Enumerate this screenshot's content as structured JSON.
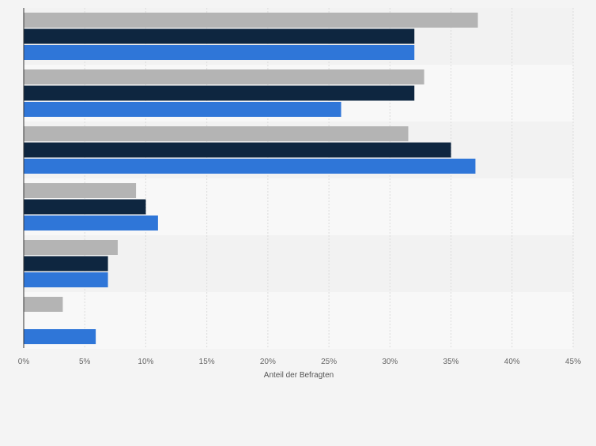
{
  "chart_data": {
    "type": "bar",
    "orientation": "horizontal",
    "categories": [
      "",
      "",
      "",
      "",
      "",
      ""
    ],
    "series": [
      {
        "values": [
          37.2,
          32.8,
          31.5,
          9.2,
          7.7,
          3.2
        ],
        "color": "#b4b4b4"
      },
      {
        "values": [
          32.0,
          32.0,
          35.0,
          10.0,
          6.9,
          null
        ],
        "color": "#0e2640"
      },
      {
        "values": [
          32.0,
          26.0,
          37.0,
          11.0,
          6.9,
          5.9
        ],
        "color": "#2f76d8"
      }
    ],
    "xlim": [
      0,
      45
    ],
    "xticks": [
      0,
      5,
      10,
      15,
      20,
      25,
      30,
      35,
      40,
      45
    ],
    "xtick_labels": [
      "0%",
      "5%",
      "10%",
      "15%",
      "20%",
      "25%",
      "30%",
      "35%",
      "40%",
      "45%"
    ],
    "xlabel": "Anteil der Befragten",
    "grid": true
  }
}
